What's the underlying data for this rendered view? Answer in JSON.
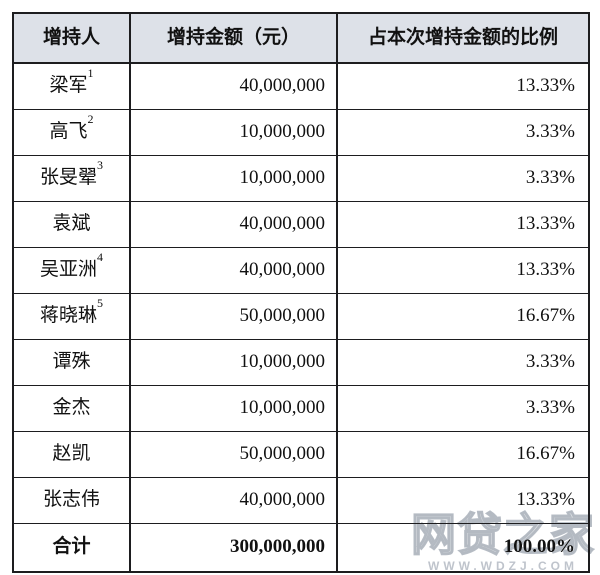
{
  "colors": {
    "header_bg": "#dde1e8",
    "border": "#1d1d1f",
    "watermark": "#b9bfc7"
  },
  "table": {
    "columns": [
      {
        "label": "增持人"
      },
      {
        "label": "增持金额（元）"
      },
      {
        "label": "占本次增持金额的比例"
      }
    ],
    "rows": [
      {
        "name": "梁军",
        "sup": "1",
        "amount": "40,000,000",
        "ratio": "13.33%"
      },
      {
        "name": "高飞",
        "sup": "2",
        "amount": "10,000,000",
        "ratio": "3.33%"
      },
      {
        "name": "张旻翚",
        "sup": "3",
        "amount": "10,000,000",
        "ratio": "3.33%"
      },
      {
        "name": "袁斌",
        "sup": "",
        "amount": "40,000,000",
        "ratio": "13.33%"
      },
      {
        "name": "吴亚洲",
        "sup": "4",
        "amount": "40,000,000",
        "ratio": "13.33%"
      },
      {
        "name": "蒋晓琳",
        "sup": "5",
        "amount": "50,000,000",
        "ratio": "16.67%"
      },
      {
        "name": "谭殊",
        "sup": "",
        "amount": "10,000,000",
        "ratio": "3.33%"
      },
      {
        "name": "金杰",
        "sup": "",
        "amount": "10,000,000",
        "ratio": "3.33%"
      },
      {
        "name": "赵凯",
        "sup": "",
        "amount": "50,000,000",
        "ratio": "16.67%"
      },
      {
        "name": "张志伟",
        "sup": "",
        "amount": "40,000,000",
        "ratio": "13.33%"
      }
    ],
    "total": {
      "label": "合计",
      "amount": "300,000,000",
      "ratio": "100.00%"
    }
  },
  "watermark": {
    "text": "网贷之家",
    "url": "WWW.WDZJ.COM"
  }
}
